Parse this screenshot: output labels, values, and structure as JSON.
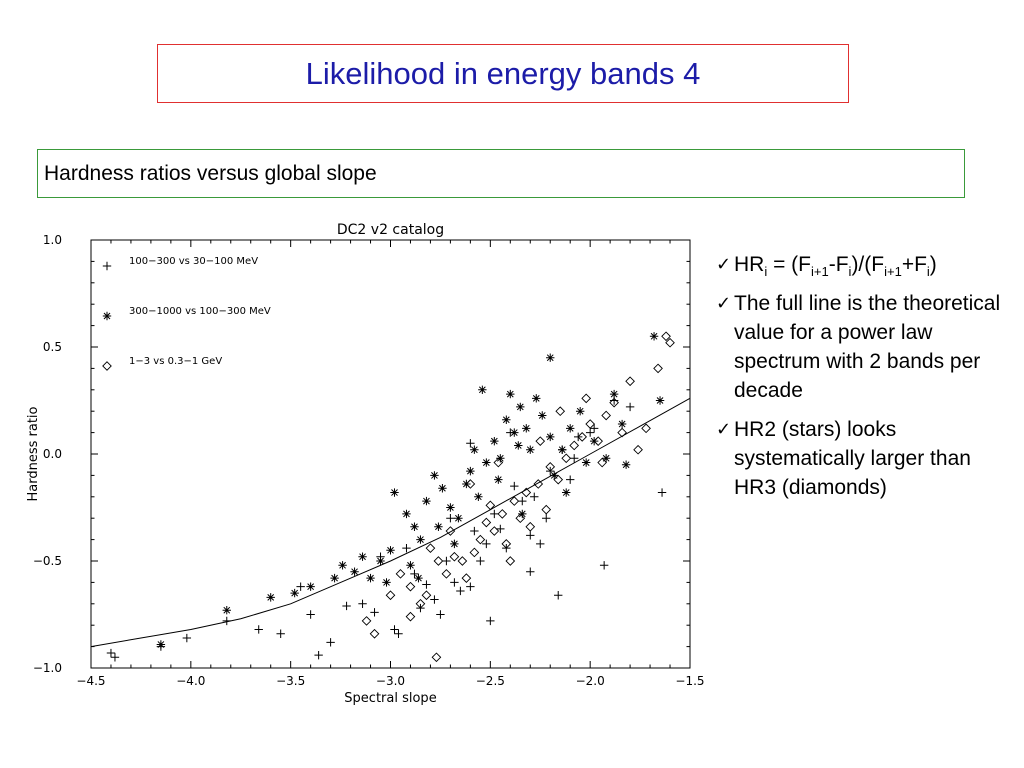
{
  "slide": {
    "title": "Likelihood in energy bands 4",
    "subtitle": "Hardness ratios versus global slope"
  },
  "bullets": {
    "formula": {
      "hr": "HR",
      "hr_sub": "i",
      "eq_open": " = (F",
      "f1_sub": "i+1",
      "minus": "-F",
      "f2_sub": "i",
      "mid": ")/(F",
      "f3_sub": "i+1",
      "plus": "+F",
      "f4_sub": "i",
      "close": ")"
    },
    "items": [
      "The full line is the theoretical value for a power law spectrum with 2 bands per decade",
      "HR2 (stars) looks systematically larger than HR3 (diamonds)"
    ],
    "check_icon": "✓"
  },
  "chart_data": {
    "type": "scatter",
    "title": "DC2 v2 catalog",
    "xlabel": "Spectral slope",
    "ylabel": "Hardness ratio",
    "xlim": [
      -4.5,
      -1.5
    ],
    "ylim": [
      -1.0,
      1.0
    ],
    "xticks": [
      "−4.5",
      "−4.0",
      "−3.5",
      "−3.0",
      "−2.5",
      "−2.0",
      "−1.5"
    ],
    "yticks": [
      "1.0",
      "0.5",
      "0.0",
      "−0.5",
      "−1.0"
    ],
    "xtick_values": [
      -4.5,
      -4.0,
      -3.5,
      -3.0,
      -2.5,
      -2.0,
      -1.5
    ],
    "ytick_values": [
      1.0,
      0.5,
      0.0,
      -0.5,
      -1.0
    ],
    "grid": false,
    "legend_position": "top-left",
    "theory_curve": {
      "x": [
        -4.5,
        -4.25,
        -4.0,
        -3.75,
        -3.5,
        -3.25,
        -3.0,
        -2.75,
        -2.5,
        -2.25,
        -2.0,
        -1.75,
        -1.5
      ],
      "y": [
        -0.9,
        -0.86,
        -0.82,
        -0.77,
        -0.7,
        -0.6,
        -0.5,
        -0.39,
        -0.26,
        -0.13,
        0.0,
        0.13,
        0.26
      ]
    },
    "series": [
      {
        "name": "100−300 vs 30−100 MeV",
        "marker": "plus",
        "points": [
          [
            -4.4,
            -0.93
          ],
          [
            -4.38,
            -0.95
          ],
          [
            -4.15,
            -0.9
          ],
          [
            -4.02,
            -0.86
          ],
          [
            -3.82,
            -0.78
          ],
          [
            -3.66,
            -0.82
          ],
          [
            -3.55,
            -0.84
          ],
          [
            -3.45,
            -0.62
          ],
          [
            -3.4,
            -0.75
          ],
          [
            -3.36,
            -0.94
          ],
          [
            -3.3,
            -0.88
          ],
          [
            -3.22,
            -0.71
          ],
          [
            -3.14,
            -0.7
          ],
          [
            -3.08,
            -0.74
          ],
          [
            -2.98,
            -0.82
          ],
          [
            -2.96,
            -0.84
          ],
          [
            -2.88,
            -0.56
          ],
          [
            -2.85,
            -0.72
          ],
          [
            -2.82,
            -0.61
          ],
          [
            -2.78,
            -0.68
          ],
          [
            -2.75,
            -0.75
          ],
          [
            -2.72,
            -0.5
          ],
          [
            -2.68,
            -0.6
          ],
          [
            -2.65,
            -0.64
          ],
          [
            -2.6,
            -0.62
          ],
          [
            -2.55,
            -0.5
          ],
          [
            -2.52,
            -0.42
          ],
          [
            -2.48,
            -0.28
          ],
          [
            -2.45,
            -0.35
          ],
          [
            -2.42,
            -0.44
          ],
          [
            -2.38,
            -0.15
          ],
          [
            -2.34,
            -0.22
          ],
          [
            -2.3,
            -0.38
          ],
          [
            -2.25,
            -0.42
          ],
          [
            -2.2,
            -0.08
          ],
          [
            -2.16,
            -0.66
          ],
          [
            -2.14,
            0.02
          ],
          [
            -2.1,
            -0.12
          ],
          [
            -2.06,
            0.08
          ],
          [
            -1.98,
            0.12
          ],
          [
            -1.93,
            -0.52
          ],
          [
            -1.88,
            0.25
          ],
          [
            -1.8,
            0.22
          ],
          [
            -1.64,
            -0.18
          ],
          [
            -2.92,
            -0.44
          ],
          [
            -3.05,
            -0.48
          ],
          [
            -2.7,
            -0.3
          ],
          [
            -2.58,
            -0.36
          ],
          [
            -2.4,
            0.1
          ],
          [
            -2.28,
            -0.2
          ],
          [
            -2.6,
            0.05
          ],
          [
            -2.5,
            -0.78
          ],
          [
            -2.3,
            -0.55
          ],
          [
            -2.22,
            -0.3
          ],
          [
            -2.08,
            -0.02
          ],
          [
            -2.0,
            0.1
          ]
        ]
      },
      {
        "name": "300−1000 vs 100−300 MeV",
        "marker": "star",
        "points": [
          [
            -4.15,
            -0.89
          ],
          [
            -3.82,
            -0.73
          ],
          [
            -3.6,
            -0.67
          ],
          [
            -3.48,
            -0.65
          ],
          [
            -3.4,
            -0.62
          ],
          [
            -3.28,
            -0.58
          ],
          [
            -3.24,
            -0.52
          ],
          [
            -3.18,
            -0.55
          ],
          [
            -3.14,
            -0.48
          ],
          [
            -3.1,
            -0.58
          ],
          [
            -3.05,
            -0.5
          ],
          [
            -3.0,
            -0.45
          ],
          [
            -2.98,
            -0.18
          ],
          [
            -2.92,
            -0.28
          ],
          [
            -2.88,
            -0.34
          ],
          [
            -2.85,
            -0.4
          ],
          [
            -2.82,
            -0.22
          ],
          [
            -2.78,
            -0.1
          ],
          [
            -2.74,
            -0.16
          ],
          [
            -2.7,
            -0.25
          ],
          [
            -2.66,
            -0.3
          ],
          [
            -2.62,
            -0.14
          ],
          [
            -2.6,
            -0.08
          ],
          [
            -2.56,
            -0.2
          ],
          [
            -2.52,
            -0.04
          ],
          [
            -2.48,
            0.06
          ],
          [
            -2.45,
            -0.02
          ],
          [
            -2.42,
            0.16
          ],
          [
            -2.38,
            0.1
          ],
          [
            -2.35,
            0.22
          ],
          [
            -2.32,
            0.12
          ],
          [
            -2.3,
            0.02
          ],
          [
            -2.27,
            0.26
          ],
          [
            -2.24,
            0.18
          ],
          [
            -2.2,
            0.08
          ],
          [
            -2.18,
            -0.1
          ],
          [
            -2.14,
            0.02
          ],
          [
            -2.1,
            0.12
          ],
          [
            -2.05,
            0.2
          ],
          [
            -2.02,
            -0.04
          ],
          [
            -1.98,
            0.06
          ],
          [
            -1.92,
            -0.02
          ],
          [
            -1.88,
            0.28
          ],
          [
            -1.84,
            0.14
          ],
          [
            -1.82,
            -0.05
          ],
          [
            -1.68,
            0.55
          ],
          [
            -1.65,
            0.25
          ],
          [
            -2.2,
            0.45
          ],
          [
            -2.4,
            0.28
          ],
          [
            -2.58,
            0.02
          ],
          [
            -2.76,
            -0.34
          ],
          [
            -2.9,
            -0.52
          ],
          [
            -3.02,
            -0.6
          ],
          [
            -2.46,
            -0.12
          ],
          [
            -2.34,
            -0.28
          ],
          [
            -2.12,
            -0.18
          ],
          [
            -2.68,
            -0.42
          ],
          [
            -2.54,
            0.3
          ],
          [
            -2.36,
            0.04
          ],
          [
            -2.86,
            -0.58
          ]
        ]
      },
      {
        "name": "1−3 vs 0.3−1 GeV",
        "marker": "diamond",
        "points": [
          [
            -3.12,
            -0.78
          ],
          [
            -3.08,
            -0.84
          ],
          [
            -2.95,
            -0.56
          ],
          [
            -2.9,
            -0.62
          ],
          [
            -2.85,
            -0.7
          ],
          [
            -2.8,
            -0.44
          ],
          [
            -2.76,
            -0.5
          ],
          [
            -2.72,
            -0.56
          ],
          [
            -2.68,
            -0.48
          ],
          [
            -2.64,
            -0.5
          ],
          [
            -2.62,
            -0.58
          ],
          [
            -2.58,
            -0.46
          ],
          [
            -2.55,
            -0.4
          ],
          [
            -2.52,
            -0.32
          ],
          [
            -2.5,
            -0.24
          ],
          [
            -2.48,
            -0.36
          ],
          [
            -2.44,
            -0.28
          ],
          [
            -2.42,
            -0.42
          ],
          [
            -2.38,
            -0.22
          ],
          [
            -2.35,
            -0.3
          ],
          [
            -2.32,
            -0.18
          ],
          [
            -2.3,
            -0.34
          ],
          [
            -2.26,
            -0.14
          ],
          [
            -2.22,
            -0.26
          ],
          [
            -2.2,
            -0.06
          ],
          [
            -2.16,
            -0.12
          ],
          [
            -2.12,
            -0.02
          ],
          [
            -2.08,
            0.04
          ],
          [
            -2.04,
            0.08
          ],
          [
            -2.0,
            0.14
          ],
          [
            -1.96,
            0.06
          ],
          [
            -1.92,
            0.18
          ],
          [
            -1.88,
            0.24
          ],
          [
            -1.84,
            0.1
          ],
          [
            -1.8,
            0.34
          ],
          [
            -1.76,
            0.02
          ],
          [
            -1.72,
            0.12
          ],
          [
            -1.66,
            0.4
          ],
          [
            -1.62,
            0.55
          ],
          [
            -1.6,
            0.52
          ],
          [
            -2.82,
            -0.66
          ],
          [
            -2.4,
            -0.5
          ],
          [
            -2.02,
            0.26
          ],
          [
            -1.94,
            -0.04
          ],
          [
            -2.25,
            0.06
          ],
          [
            -2.6,
            -0.14
          ],
          [
            -2.7,
            -0.36
          ],
          [
            -2.15,
            0.2
          ],
          [
            -2.46,
            -0.04
          ],
          [
            -2.9,
            -0.76
          ],
          [
            -3.0,
            -0.66
          ],
          [
            -2.77,
            -0.95
          ]
        ]
      }
    ]
  }
}
